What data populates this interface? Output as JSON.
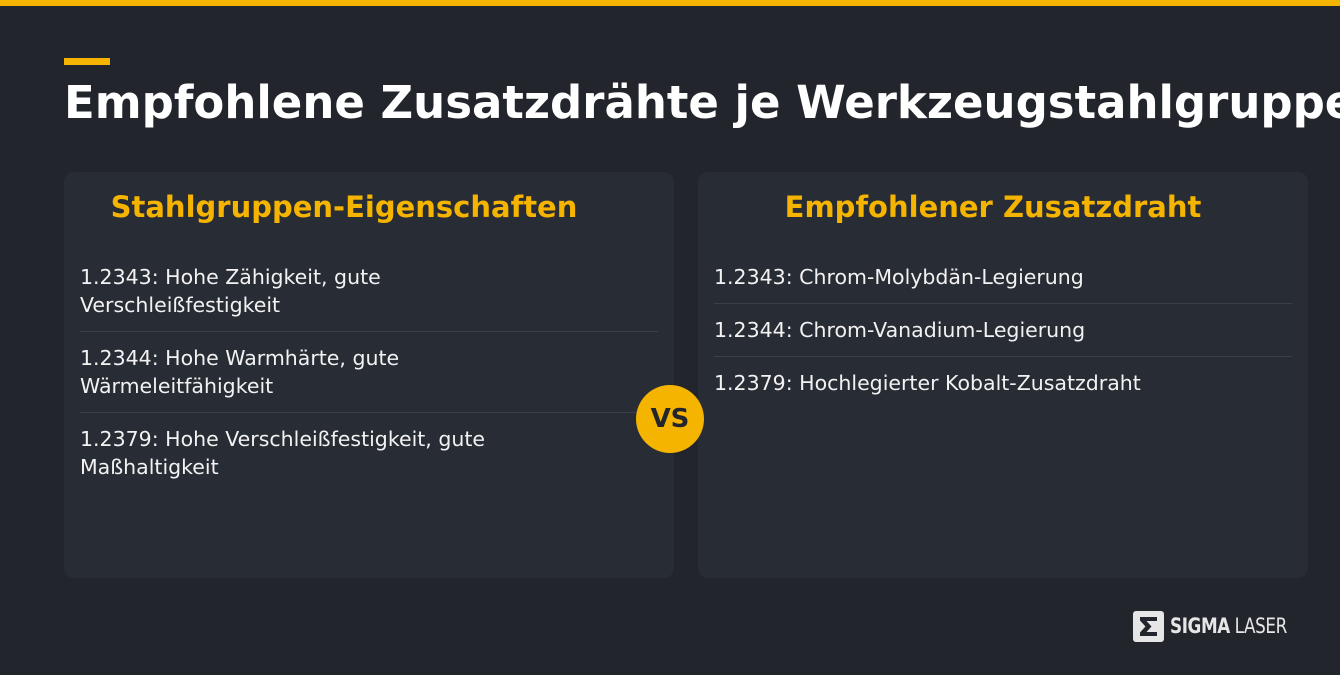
{
  "title": "Empfohlene Zusatzdrähte je Werkzeugstahlgruppe",
  "left_panel": {
    "heading": "Stahlgruppen-Eigenschaften",
    "items": [
      "1.2343: Hohe Zähigkeit, gute Verschleißfestigkeit",
      "1.2344: Hohe Warmhärte, gute Wärmeleitfähigkeit",
      "1.2379: Hohe Verschleißfestigkeit, gute Maßhaltigkeit"
    ]
  },
  "right_panel": {
    "heading": "Empfohlener Zusatzdraht",
    "items": [
      "1.2343: Chrom-Molybdän-Legierung",
      "1.2344: Chrom-Vanadium-Legierung",
      "1.2379: Hochlegierter Kobalt-Zusatzdraht"
    ]
  },
  "vs_label": "VS",
  "logo": {
    "bold": "SIGMA",
    "regular": "LASER",
    "icon": "sigma-logo-icon"
  },
  "colors": {
    "background": "#23252d",
    "panel": "#282c34",
    "accent": "#f5b400",
    "text": "#ffffff"
  }
}
